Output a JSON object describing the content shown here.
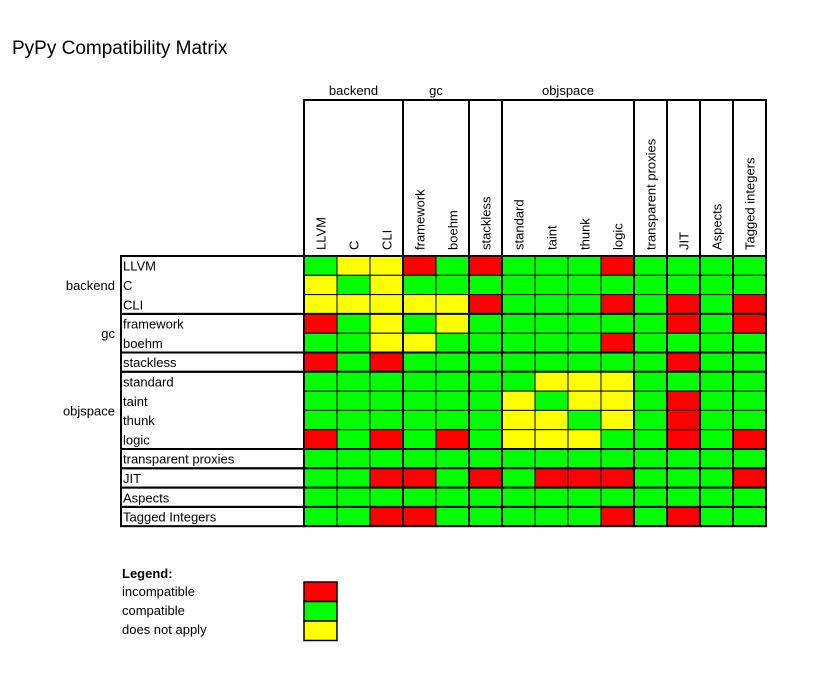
{
  "chart_data": {
    "type": "heatmap",
    "title": "PyPy Compatibility Matrix",
    "column_groups": [
      {
        "label": "backend",
        "columns": [
          "LLVM",
          "C",
          "CLI"
        ]
      },
      {
        "label": "gc",
        "columns": [
          "framework",
          "boehm"
        ]
      },
      {
        "label": "",
        "columns": [
          "stackless"
        ]
      },
      {
        "label": "objspace",
        "columns": [
          "standard",
          "taint",
          "thunk",
          "logic"
        ]
      },
      {
        "label": "",
        "columns": [
          "transparent proxies"
        ]
      },
      {
        "label": "",
        "columns": [
          "JIT"
        ]
      },
      {
        "label": "",
        "columns": [
          "Aspects"
        ]
      },
      {
        "label": "",
        "columns": [
          "Tagged integers"
        ]
      }
    ],
    "row_groups": [
      {
        "label": "backend",
        "rows": [
          "LLVM",
          "C",
          "CLI"
        ]
      },
      {
        "label": "gc",
        "rows": [
          "framework",
          "boehm"
        ]
      },
      {
        "label": "",
        "rows": [
          "stackless"
        ]
      },
      {
        "label": "objspace",
        "rows": [
          "standard",
          "taint",
          "thunk",
          "logic"
        ]
      },
      {
        "label": "",
        "rows": [
          "transparent proxies"
        ]
      },
      {
        "label": "",
        "rows": [
          "JIT"
        ]
      },
      {
        "label": "",
        "rows": [
          "Aspects"
        ]
      },
      {
        "label": "",
        "rows": [
          "Tagged Integers"
        ]
      }
    ],
    "legend": [
      {
        "code": "R",
        "label": "incompatible",
        "color": "#ff0000"
      },
      {
        "code": "G",
        "label": "compatible",
        "color": "#00ff00"
      },
      {
        "code": "Y",
        "label": "does not apply",
        "color": "#ffff00"
      }
    ],
    "matrix": [
      [
        "G",
        "Y",
        "Y",
        "R",
        "G",
        "R",
        "G",
        "G",
        "G",
        "R",
        "G",
        "G",
        "G",
        "G"
      ],
      [
        "Y",
        "G",
        "Y",
        "G",
        "G",
        "G",
        "G",
        "G",
        "G",
        "G",
        "G",
        "G",
        "G",
        "G"
      ],
      [
        "Y",
        "Y",
        "Y",
        "Y",
        "Y",
        "R",
        "G",
        "G",
        "G",
        "R",
        "G",
        "R",
        "G",
        "R"
      ],
      [
        "R",
        "G",
        "Y",
        "G",
        "Y",
        "G",
        "G",
        "G",
        "G",
        "G",
        "G",
        "R",
        "G",
        "R"
      ],
      [
        "G",
        "G",
        "Y",
        "Y",
        "G",
        "G",
        "G",
        "G",
        "G",
        "R",
        "G",
        "G",
        "G",
        "G"
      ],
      [
        "R",
        "G",
        "R",
        "G",
        "G",
        "G",
        "G",
        "G",
        "G",
        "G",
        "G",
        "R",
        "G",
        "G"
      ],
      [
        "G",
        "G",
        "G",
        "G",
        "G",
        "G",
        "G",
        "Y",
        "Y",
        "Y",
        "G",
        "G",
        "G",
        "G"
      ],
      [
        "G",
        "G",
        "G",
        "G",
        "G",
        "G",
        "Y",
        "G",
        "Y",
        "Y",
        "G",
        "R",
        "G",
        "G"
      ],
      [
        "G",
        "G",
        "G",
        "G",
        "G",
        "G",
        "Y",
        "Y",
        "G",
        "Y",
        "G",
        "R",
        "G",
        "G"
      ],
      [
        "R",
        "G",
        "R",
        "G",
        "R",
        "G",
        "Y",
        "Y",
        "Y",
        "G",
        "G",
        "R",
        "G",
        "R"
      ],
      [
        "G",
        "G",
        "G",
        "G",
        "G",
        "G",
        "G",
        "G",
        "G",
        "G",
        "G",
        "G",
        "G",
        "G"
      ],
      [
        "G",
        "G",
        "R",
        "R",
        "G",
        "R",
        "G",
        "R",
        "R",
        "R",
        "G",
        "G",
        "G",
        "R"
      ],
      [
        "G",
        "G",
        "G",
        "G",
        "G",
        "G",
        "G",
        "G",
        "G",
        "G",
        "G",
        "G",
        "G",
        "G"
      ],
      [
        "G",
        "G",
        "R",
        "R",
        "G",
        "G",
        "G",
        "G",
        "G",
        "R",
        "G",
        "R",
        "G",
        "G"
      ]
    ]
  },
  "legend_title": "Legend:"
}
